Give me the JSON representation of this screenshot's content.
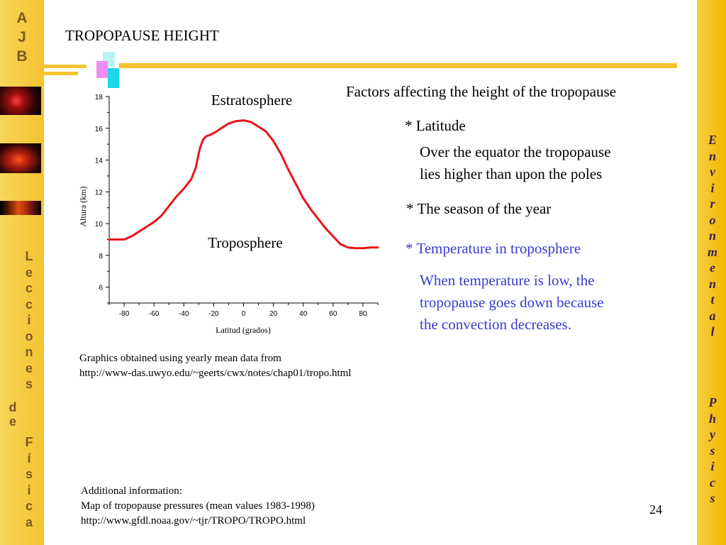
{
  "sidebar_left": {
    "logo_letters": [
      "A",
      "J",
      "B"
    ],
    "lecciones_letters": [
      "L",
      "e",
      "c",
      "c",
      "i",
      "o",
      "n",
      "e",
      "s"
    ],
    "de_letters": [
      "d",
      "e"
    ],
    "fisica_letters": [
      "F",
      "í",
      "s",
      "i",
      "c",
      "a"
    ]
  },
  "sidebar_right": {
    "environmental_letters": [
      "E",
      "n",
      "v",
      "i",
      "r",
      "o",
      "n",
      "m",
      "e",
      "n",
      "t",
      "a",
      "l"
    ],
    "physics_letters": [
      "P",
      "h",
      "y",
      "s",
      "i",
      "c",
      "s"
    ]
  },
  "slide": {
    "title": "TROPOPAUSE HEIGHT",
    "factors_heading": "Factors affecting the height of the tropopause",
    "latitude_bullet": "* Latitude",
    "latitude_desc_1": "Over the equator the tropopause",
    "latitude_desc_2": "lies higher than upon the poles",
    "season_bullet": "* The season of the year",
    "temperature_bullet": "* Temperature in troposphere",
    "temperature_desc_1": "When temperature is low, the",
    "temperature_desc_2": "tropopause goes down because",
    "temperature_desc_3": "the convection decreases.",
    "source_1": "Graphics obtained using yearly  mean data from",
    "source_2": "http://www-das.uwyo.edu/~geerts/cwx/notes/chap01/tropo.html",
    "additional_1": "Additional information:",
    "additional_2": "Map of tropopause pressures (mean values 1983-1998)",
    "additional_3": "http://www.gfdl.noaa.gov/~tjr/TROPO/TROPO.html",
    "page_number": "24"
  },
  "colors": {
    "accent_yellow": "#f3c431",
    "curve_red": "#e8141c",
    "bullet_blue": "#3a3ad0",
    "sidebar_letter_brown": "#7a5a20",
    "sidebar_letter_purple": "#3a1f5a"
  },
  "chart_data": {
    "type": "line",
    "title": "",
    "xlabel": "Latitud (grados)",
    "ylabel": "Altura (km)",
    "xlim": [
      -90,
      90
    ],
    "ylim": [
      5,
      18
    ],
    "xticks": [
      -80,
      -60,
      -40,
      -20,
      0,
      20,
      40,
      60,
      80
    ],
    "yticks": [
      6,
      8,
      10,
      12,
      14,
      16,
      18
    ],
    "annotations": [
      "Estratosphere",
      "Troposphere"
    ],
    "series": [
      {
        "x": [
          -90,
          -85,
          -80,
          -75,
          -70,
          -65,
          -60,
          -55,
          -50,
          -45,
          -40,
          -35,
          -32,
          -30,
          -29,
          -27,
          -25,
          -22,
          -20,
          -18,
          -15,
          -10,
          -5,
          0,
          5,
          10,
          15,
          20,
          25,
          30,
          35,
          40,
          45,
          50,
          55,
          60,
          65,
          70,
          75,
          80,
          85,
          90
        ],
        "y": [
          9.0,
          9.0,
          9.0,
          9.2,
          9.5,
          9.8,
          10.1,
          10.5,
          11.1,
          11.7,
          12.2,
          12.8,
          13.5,
          14.4,
          14.8,
          15.3,
          15.5,
          15.6,
          15.7,
          15.8,
          16.0,
          16.3,
          16.45,
          16.5,
          16.4,
          16.1,
          15.8,
          15.2,
          14.4,
          13.4,
          12.5,
          11.6,
          10.9,
          10.3,
          9.7,
          9.2,
          8.7,
          8.5,
          8.45,
          8.45,
          8.5,
          8.5
        ]
      }
    ]
  }
}
